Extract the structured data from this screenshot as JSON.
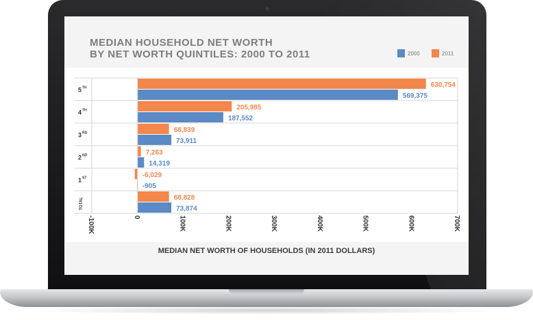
{
  "chart_data": {
    "type": "bar",
    "orientation": "horizontal",
    "title": "MEDIAN HOUSEHOLD NET WORTH\nBY NET WORTH QUINTILES: 2000 TO 2011",
    "xlabel": "MEDIAN NET WORTH OF HOUSEHOLDS (IN 2011 DOLLARS)",
    "xlim": [
      -100000,
      700000
    ],
    "x_ticks": [
      {
        "value": -100000,
        "label": "-100K"
      },
      {
        "value": 0,
        "label": "0"
      },
      {
        "value": 100000,
        "label": "100K"
      },
      {
        "value": 200000,
        "label": "200K"
      },
      {
        "value": 300000,
        "label": "300K"
      },
      {
        "value": 400000,
        "label": "400K"
      },
      {
        "value": 500000,
        "label": "500K"
      },
      {
        "value": 600000,
        "label": "600K"
      },
      {
        "value": 700000,
        "label": "700K"
      }
    ],
    "categories": [
      {
        "main": "5",
        "sup": "TH"
      },
      {
        "main": "4",
        "sup": "TH"
      },
      {
        "main": "3",
        "sup": "RD"
      },
      {
        "main": "2",
        "sup": "ND"
      },
      {
        "main": "1",
        "sup": "ST"
      },
      {
        "main": "",
        "sup": "TOTAL"
      }
    ],
    "series": [
      {
        "name": "2011",
        "color": "#f4874b",
        "values": [
          630754,
          205985,
          68839,
          7263,
          -6029,
          68828
        ],
        "labels": [
          "630,754",
          "205,985",
          "68,839",
          "7,263",
          "-6,029",
          "68,828"
        ]
      },
      {
        "name": "2000",
        "color": "#5b8ac4",
        "values": [
          569375,
          187552,
          73911,
          14319,
          -905,
          73874
        ],
        "labels": [
          "569,375",
          "187,552",
          "73,911",
          "14,319",
          "-905",
          "73,874"
        ]
      }
    ],
    "legend": [
      "2000",
      "2011"
    ],
    "legend_position": "top-right"
  }
}
